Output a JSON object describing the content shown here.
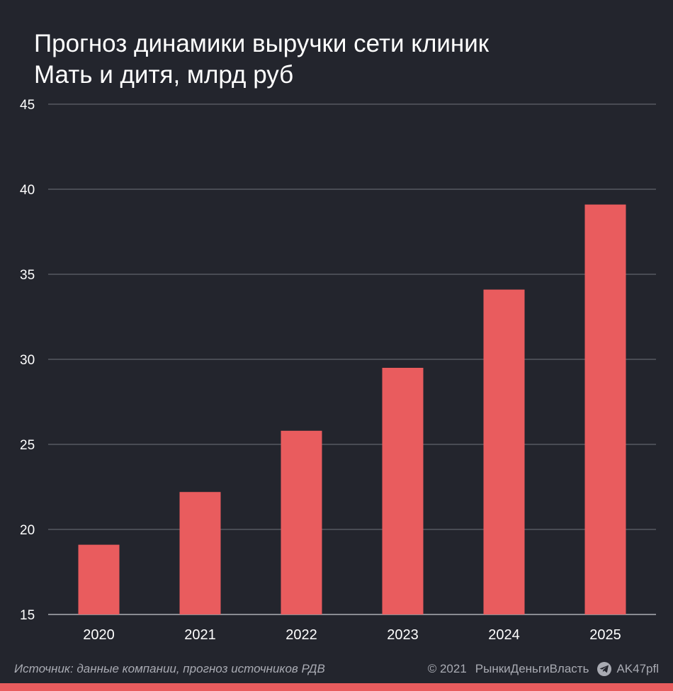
{
  "header": {
    "title_line1": "Прогноз динамики выручки сети клиник",
    "title_line2": "Мать и дитя, млрд руб"
  },
  "footer": {
    "source": "Источник: данные компании, прогноз источников РДВ",
    "copyright": "© 2021",
    "brand": "РынкиДеньгиВласть",
    "telegram_icon": "telegram-icon",
    "channel": "AK47pfl"
  },
  "colors": {
    "background": "#23252d",
    "bar": "#e95c5e",
    "grid": "#8a8c94",
    "text": "#ffffff",
    "muted": "#a9abb3"
  },
  "chart_data": {
    "type": "bar",
    "title": "Прогноз динамики выручки сети клиник Мать и дитя, млрд руб",
    "categories": [
      "2020",
      "2021",
      "2022",
      "2023",
      "2024",
      "2025"
    ],
    "values": [
      19.1,
      22.2,
      25.8,
      29.5,
      34.1,
      39.1
    ],
    "ylim": [
      15,
      45
    ],
    "yticks": [
      15,
      20,
      25,
      30,
      35,
      40,
      45
    ],
    "grid": true,
    "legend": "none"
  }
}
